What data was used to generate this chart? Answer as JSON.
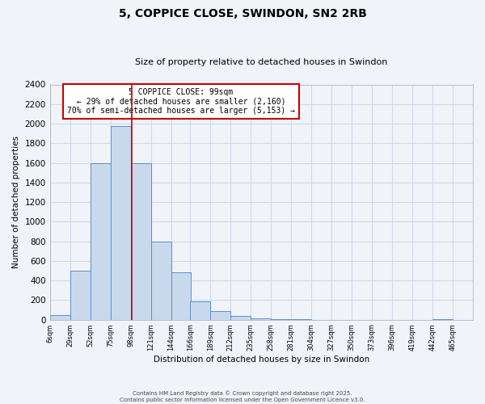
{
  "title": "5, COPPICE CLOSE, SWINDON, SN2 2RB",
  "subtitle": "Size of property relative to detached houses in Swindon",
  "xlabel": "Distribution of detached houses by size in Swindon",
  "ylabel": "Number of detached properties",
  "bar_left_edges": [
    6,
    29,
    52,
    75,
    98,
    121,
    144,
    166,
    189,
    212,
    235,
    258,
    281,
    304,
    327,
    350,
    373,
    396,
    419,
    442
  ],
  "bar_heights": [
    50,
    500,
    1600,
    1975,
    1600,
    800,
    480,
    190,
    90,
    35,
    10,
    5,
    2,
    0,
    0,
    0,
    0,
    0,
    0,
    5
  ],
  "bin_width": 23,
  "bar_facecolor": "#c9d9ed",
  "bar_edgecolor": "#5b8fc9",
  "property_line_x": 99,
  "property_line_color": "#cc0000",
  "annotation_title": "5 COPPICE CLOSE: 99sqm",
  "annotation_line1": "← 29% of detached houses are smaller (2,160)",
  "annotation_line2": "70% of semi-detached houses are larger (5,153) →",
  "annotation_box_edgecolor": "#cc0000",
  "ylim": [
    0,
    2400
  ],
  "yticks": [
    0,
    200,
    400,
    600,
    800,
    1000,
    1200,
    1400,
    1600,
    1800,
    2000,
    2200,
    2400
  ],
  "xtick_labels": [
    "6sqm",
    "29sqm",
    "52sqm",
    "75sqm",
    "98sqm",
    "121sqm",
    "144sqm",
    "166sqm",
    "189sqm",
    "212sqm",
    "235sqm",
    "258sqm",
    "281sqm",
    "304sqm",
    "327sqm",
    "350sqm",
    "373sqm",
    "396sqm",
    "419sqm",
    "442sqm",
    "465sqm"
  ],
  "xtick_positions": [
    6,
    29,
    52,
    75,
    98,
    121,
    144,
    166,
    189,
    212,
    235,
    258,
    281,
    304,
    327,
    350,
    373,
    396,
    419,
    442,
    465
  ],
  "grid_color": "#d0d8e8",
  "background_color": "#f0f4f9",
  "footer_line1": "Contains HM Land Registry data © Crown copyright and database right 2025.",
  "footer_line2": "Contains public sector information licensed under the Open Government Licence v3.0."
}
